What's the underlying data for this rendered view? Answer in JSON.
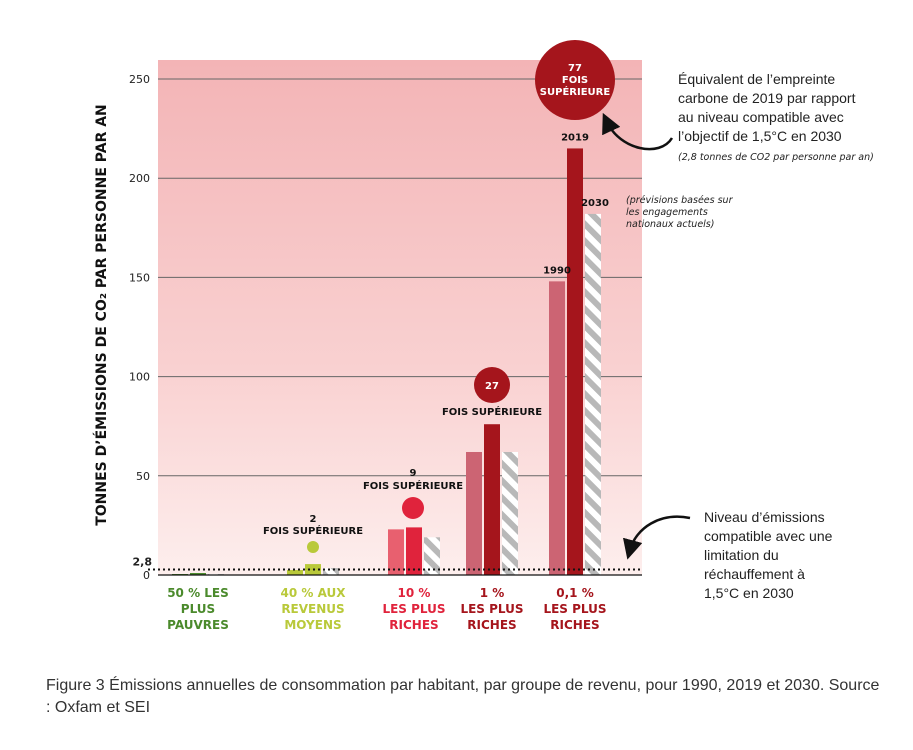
{
  "colors": {
    "poorest": "#4b8a2c",
    "middle": "#b9c93a",
    "top10": "#e0233c",
    "top10_light": "#e8606f",
    "top1_dark": "#a5151c",
    "top1_light": "#cc6473",
    "hatch": "#b8b8b8"
  },
  "chart_data": {
    "type": "bar",
    "title": "",
    "ylabel": "TONNES D’ÉMISSIONS DE CO₂ PAR PERSONNE PAR AN",
    "ylim": [
      0,
      260
    ],
    "yticks": [
      "0",
      "50",
      "100",
      "150",
      "200",
      "250"
    ],
    "reference_line": {
      "value": 2.8,
      "label": "2,8"
    },
    "categories": [
      [
        "50 % LES",
        "PLUS",
        "PAUVRES"
      ],
      [
        "40 % AUX",
        "REVENUS",
        "MOYENS"
      ],
      [
        "10 %",
        "LES PLUS",
        "RICHES"
      ],
      [
        "1 %",
        "LES PLUS",
        "RICHES"
      ],
      [
        "0,1 %",
        "LES PLUS",
        "RICHES"
      ]
    ],
    "series": [
      {
        "name": "1990",
        "values": [
          0.5,
          2.5,
          23,
          62,
          148
        ]
      },
      {
        "name": "2019",
        "values": [
          1.0,
          5.5,
          24,
          76,
          215
        ]
      },
      {
        "name": "2030",
        "values": [
          0.5,
          3.5,
          19,
          62,
          182
        ]
      }
    ],
    "bar_labels": {
      "1990": "1990",
      "2019": "2019",
      "2030": "2030"
    },
    "multipliers": [
      {
        "number": "2",
        "text": "FOIS SUPÉRIEURE"
      },
      {
        "number": "9",
        "text": "FOIS SUPÉRIEURE"
      },
      {
        "number": "27",
        "text": "FOIS SUPÉRIEURE"
      },
      {
        "number": "77",
        "text": "FOIS",
        "text2": "SUPÉRIEURE"
      }
    ]
  },
  "annotations": {
    "top_right": [
      "Équivalent de l’empreinte",
      "carbone de 2019 par rapport",
      "au niveau compatible avec",
      "l’objectif de 1,5°C en 2030"
    ],
    "top_right_small": "(2,8 tonnes de CO2 par personne par an)",
    "projection_note": [
      "(prévisions basées sur",
      "les engagements",
      "nationaux actuels)"
    ],
    "bottom_right": [
      "Niveau d’émissions",
      "compatible avec une",
      "limitation du",
      "réchauffement à",
      "1,5°C en 2030"
    ]
  },
  "caption": "Figure 3 Émissions annuelles de consommation par habitant, par groupe de revenu, pour 1990, 2019 et 2030. Source : Oxfam et SEI"
}
